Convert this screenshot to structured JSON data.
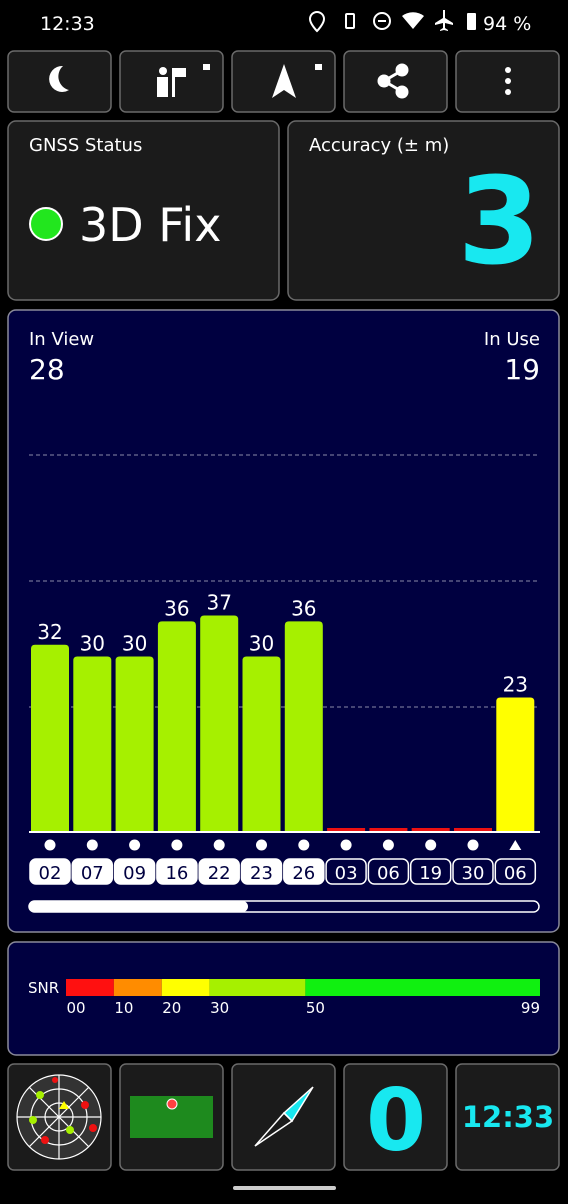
{
  "status_bar": {
    "time": "12:33",
    "battery": "94 %"
  },
  "gnss_status": {
    "title": "GNSS Status",
    "value": "3D Fix",
    "color": "#22e61e"
  },
  "accuracy": {
    "title": "Accuracy (± m)",
    "value": "3"
  },
  "signal": {
    "in_view_label": "In View",
    "in_view": 28,
    "in_use_label": "In Use",
    "in_use": 19,
    "satellites": [
      {
        "id": "02",
        "snr": 32,
        "used": true,
        "marker": "dot",
        "color": "#a6f000"
      },
      {
        "id": "07",
        "snr": 30,
        "used": true,
        "marker": "dot",
        "color": "#a6f000"
      },
      {
        "id": "09",
        "snr": 30,
        "used": true,
        "marker": "dot",
        "color": "#a6f000"
      },
      {
        "id": "16",
        "snr": 36,
        "used": true,
        "marker": "dot",
        "color": "#a6f000"
      },
      {
        "id": "22",
        "snr": 37,
        "used": true,
        "marker": "dot",
        "color": "#a6f000"
      },
      {
        "id": "23",
        "snr": 30,
        "used": true,
        "marker": "dot",
        "color": "#a6f000"
      },
      {
        "id": "26",
        "snr": 36,
        "used": true,
        "marker": "dot",
        "color": "#a6f000"
      },
      {
        "id": "03",
        "snr": null,
        "used": false,
        "marker": "dot",
        "color": "#ee1111"
      },
      {
        "id": "06",
        "snr": null,
        "used": false,
        "marker": "dot",
        "color": "#ee1111"
      },
      {
        "id": "19",
        "snr": null,
        "used": false,
        "marker": "dot",
        "color": "#ee1111"
      },
      {
        "id": "30",
        "snr": null,
        "used": false,
        "marker": "dot",
        "color": "#ee1111"
      },
      {
        "id": "06",
        "snr": 23,
        "used": false,
        "marker": "triangle",
        "color": "#ffff00"
      }
    ]
  },
  "snr_scale": {
    "label": "SNR",
    "range": [
      0,
      99
    ],
    "segments": [
      {
        "from": 0,
        "to": 10,
        "color": "#ff1010"
      },
      {
        "from": 10,
        "to": 20,
        "color": "#ff8c00"
      },
      {
        "from": 20,
        "to": 30,
        "color": "#ffff00"
      },
      {
        "from": 30,
        "to": 50,
        "color": "#a6f000"
      },
      {
        "from": 50,
        "to": 99,
        "color": "#10f010"
      }
    ],
    "ticks": [
      {
        "value": 0,
        "label": "00"
      },
      10,
      20,
      30,
      50,
      99
    ]
  },
  "tiles": {
    "count": "0",
    "clock": "12:33"
  }
}
